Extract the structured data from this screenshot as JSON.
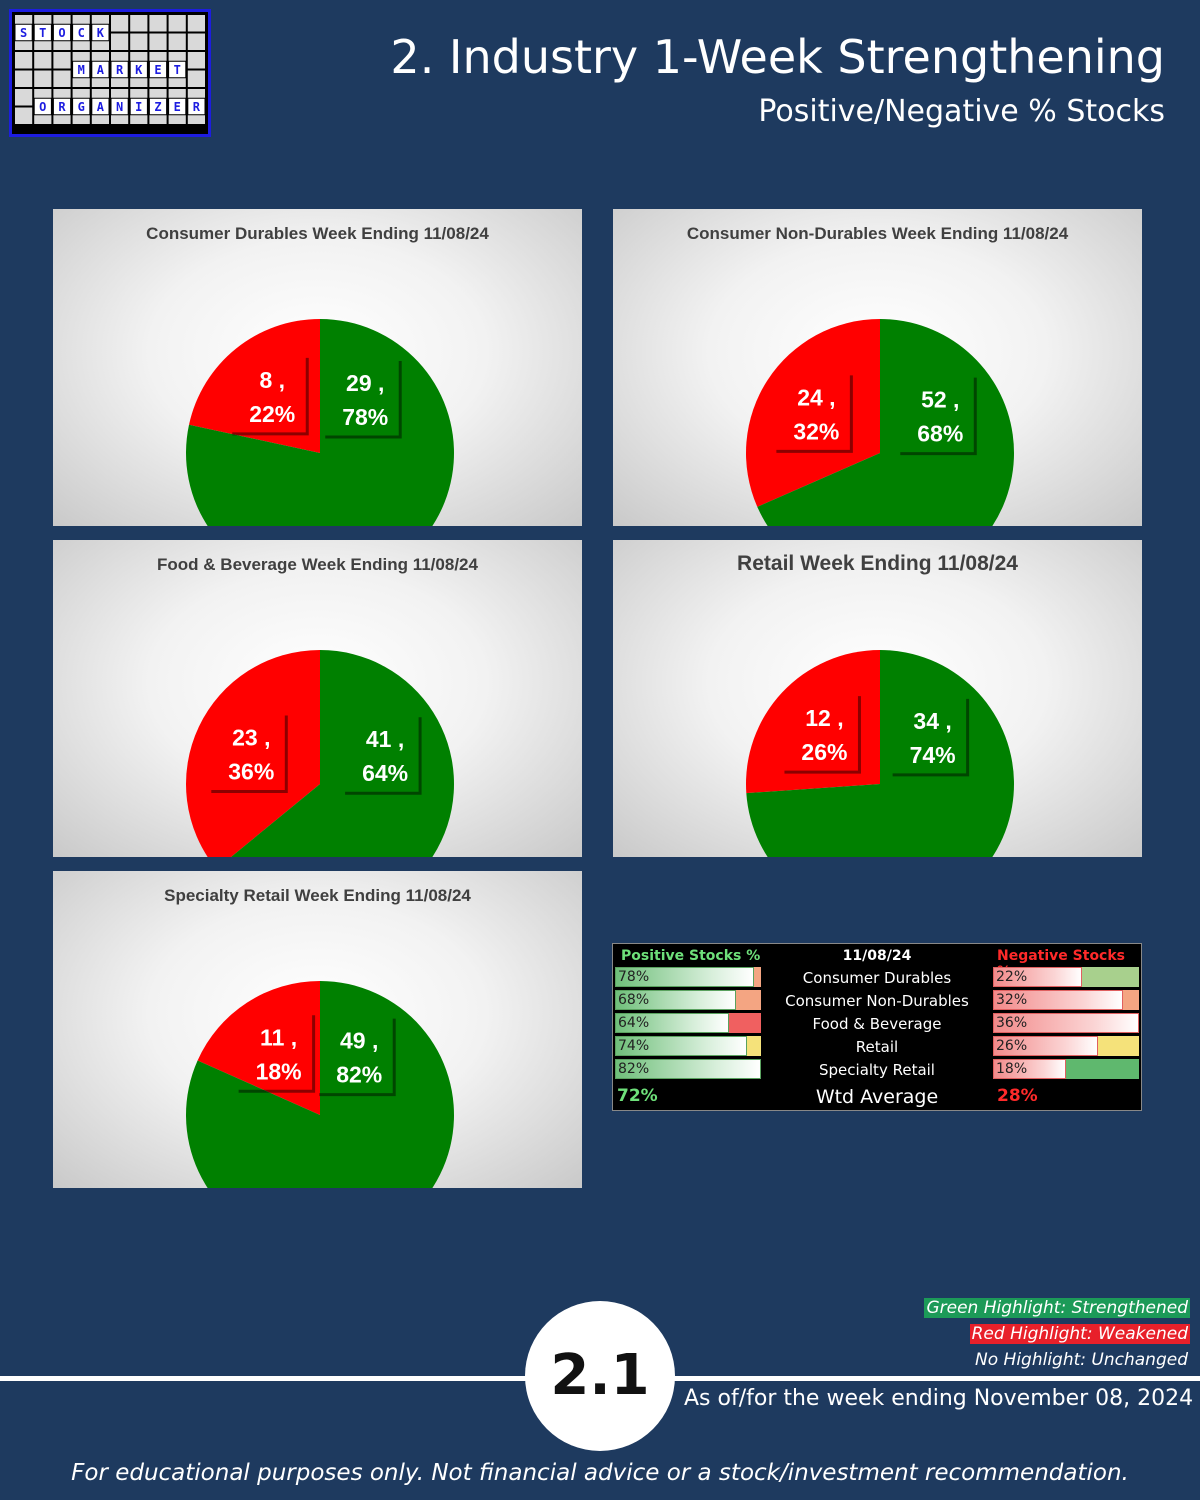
{
  "logo": {
    "rows": [
      {
        "letters": [
          "S",
          "T",
          "O",
          "C",
          "K"
        ],
        "start": 0
      },
      {
        "letters": [
          "M",
          "A",
          "R",
          "K",
          "E",
          "T"
        ],
        "start": 3
      },
      {
        "letters": [
          "O",
          "R",
          "G",
          "A",
          "N",
          "I",
          "Z",
          "E",
          "R"
        ],
        "start": 1
      }
    ]
  },
  "header": {
    "title": "2. Industry 1-Week Strengthening",
    "subtitle": "Positive/Negative % Stocks"
  },
  "colors": {
    "positive": "#008000",
    "negative": "#ff0000",
    "background": "#1e3a5f"
  },
  "chart_data": [
    {
      "type": "pie",
      "title": "Consumer Durables Week Ending 11/08/24",
      "slices": [
        {
          "label": "Negative",
          "value": 8,
          "percent": "22%"
        },
        {
          "label": "Positive",
          "value": 29,
          "percent": "78%"
        }
      ],
      "data_labels": [
        "8 ,\n22%",
        "29 ,\n78%"
      ]
    },
    {
      "type": "pie",
      "title": "Consumer Non-Durables Week Ending 11/08/24",
      "slices": [
        {
          "label": "Negative",
          "value": 24,
          "percent": "32%"
        },
        {
          "label": "Positive",
          "value": 52,
          "percent": "68%"
        }
      ],
      "data_labels": [
        "24 ,\n32%",
        "52 ,\n68%"
      ]
    },
    {
      "type": "pie",
      "title": "Food & Beverage Week Ending 11/08/24",
      "slices": [
        {
          "label": "Negative",
          "value": 23,
          "percent": "36%"
        },
        {
          "label": "Positive",
          "value": 41,
          "percent": "64%"
        }
      ],
      "data_labels": [
        "23 ,\n36%",
        "41 ,\n64%"
      ]
    },
    {
      "type": "pie",
      "title": "Retail Week Ending 11/08/24",
      "slices": [
        {
          "label": "Negative",
          "value": 12,
          "percent": "26%"
        },
        {
          "label": "Positive",
          "value": 34,
          "percent": "74%"
        }
      ],
      "data_labels": [
        "12 ,\n26%",
        "34 ,\n74%"
      ]
    },
    {
      "type": "pie",
      "title": "Specialty Retail Week Ending 11/08/24",
      "slices": [
        {
          "label": "Negative",
          "value": 11,
          "percent": "18%"
        },
        {
          "label": "Positive",
          "value": 49,
          "percent": "82%"
        }
      ],
      "data_labels": [
        "11 ,\n18%",
        "49 ,\n82%"
      ]
    },
    {
      "type": "table",
      "columns": [
        "Positive Stocks %",
        "11/08/24",
        "Negative Stocks %"
      ],
      "rows": [
        {
          "positive": "78%",
          "industry": "Consumer Durables",
          "negative": "22%",
          "pos_highlight": "#f4a582",
          "neg_highlight": "#a8d08d"
        },
        {
          "positive": "68%",
          "industry": "Consumer Non-Durables",
          "negative": "32%",
          "pos_highlight": "#f4a582",
          "neg_highlight": "#f4a582"
        },
        {
          "positive": "64%",
          "industry": "Food & Beverage",
          "negative": "36%",
          "pos_highlight": "#f06060",
          "neg_highlight": "#f06060"
        },
        {
          "positive": "74%",
          "industry": "Retail",
          "negative": "26%",
          "pos_highlight": "#f5e27a",
          "neg_highlight": "#f5e27a"
        },
        {
          "positive": "82%",
          "industry": "Specialty Retail",
          "negative": "18%",
          "pos_highlight": "#8fce7f",
          "neg_highlight": "#5fb86e"
        }
      ],
      "footer": {
        "positive": "72%",
        "label": "Wtd Average",
        "negative": "28%"
      }
    }
  ],
  "legend": {
    "green": "Green Highlight: Strengthened",
    "red": "Red Highlight: Weakened",
    "none": "No Highlight: Unchanged"
  },
  "page_number": "2.1",
  "as_of": "As of/for the week ending November 08, 2024",
  "disclaimer": "For educational purposes only. Not financial advice or a stock/investment recommendation."
}
